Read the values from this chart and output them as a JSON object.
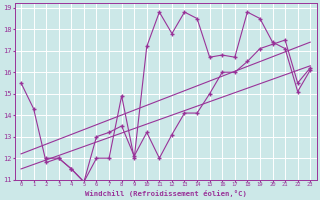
{
  "xlabel": "Windchill (Refroidissement éolien,°C)",
  "bg_color": "#cce8e8",
  "grid_color": "#ffffff",
  "line_color": "#993399",
  "xlim": [
    -0.5,
    23.5
  ],
  "ylim": [
    11,
    19.2
  ],
  "xticks": [
    0,
    1,
    2,
    3,
    4,
    5,
    6,
    7,
    8,
    9,
    10,
    11,
    12,
    13,
    14,
    15,
    16,
    17,
    18,
    19,
    20,
    21,
    22,
    23
  ],
  "yticks": [
    11,
    12,
    13,
    14,
    15,
    16,
    17,
    18,
    19
  ],
  "series1_x": [
    0,
    1,
    2,
    3,
    4,
    5,
    6,
    7,
    8,
    9,
    10,
    11,
    12,
    13,
    14,
    15,
    16,
    17,
    18,
    19,
    20,
    21,
    22,
    23
  ],
  "series1_y": [
    15.5,
    14.3,
    11.8,
    12.0,
    11.5,
    10.9,
    12.0,
    12.0,
    14.9,
    12.0,
    17.2,
    18.8,
    17.8,
    18.8,
    18.5,
    16.7,
    16.8,
    16.7,
    18.8,
    18.5,
    17.4,
    17.1,
    15.1,
    16.1
  ],
  "series2_x": [
    2,
    3,
    4,
    5,
    6,
    7,
    8,
    9,
    10,
    11,
    12,
    13,
    14,
    15,
    16,
    17,
    18,
    19,
    20,
    21,
    22,
    23
  ],
  "series2_y": [
    12.0,
    12.0,
    11.5,
    10.9,
    13.0,
    13.2,
    13.5,
    12.1,
    13.2,
    12.0,
    13.1,
    14.1,
    14.1,
    15.0,
    16.0,
    16.0,
    16.5,
    17.1,
    17.3,
    17.5,
    15.5,
    16.2
  ],
  "trend1_x": [
    0,
    23
  ],
  "trend1_y": [
    12.2,
    17.4
  ],
  "trend2_x": [
    0,
    23
  ],
  "trend2_y": [
    11.5,
    16.3
  ]
}
